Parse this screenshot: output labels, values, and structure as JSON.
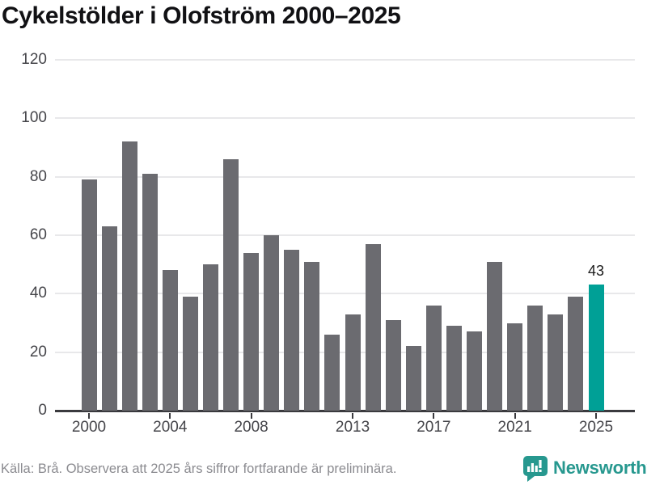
{
  "title": "Cykelstölder i Olofström 2000–2025",
  "footer": {
    "source_note": "Källa: Brå. Observera att 2025 års siffror fortfarande är preliminära."
  },
  "branding": {
    "logo_text": "Newsworthy",
    "logo_icon": "newsworthy-speech-bubble-bar-chart-icon"
  },
  "colors": {
    "bar": "#6b6b70",
    "highlight": "#00a096",
    "brand_teal": "#27988f",
    "grid": "#e8e8ea",
    "axis": "#3a3a3e",
    "tick_label": "#45454a",
    "title_text": "#111114",
    "footer_text": "#8b8b90",
    "value_label": "#1a1a1a"
  },
  "chart_data": {
    "type": "bar",
    "title": "Cykelstölder i Olofström 2000–2025",
    "xlabel": "",
    "ylabel": "",
    "categories": [
      2000,
      2001,
      2002,
      2003,
      2004,
      2005,
      2006,
      2007,
      2008,
      2009,
      2010,
      2011,
      2012,
      2013,
      2014,
      2015,
      2016,
      2017,
      2018,
      2019,
      2020,
      2021,
      2022,
      2023,
      2024,
      2025
    ],
    "values": [
      79,
      63,
      92,
      81,
      48,
      39,
      50,
      86,
      54,
      60,
      55,
      51,
      26,
      33,
      57,
      31,
      22,
      36,
      29,
      27,
      51,
      30,
      36,
      33,
      39,
      43
    ],
    "ylim": [
      0,
      120
    ],
    "yticks": [
      0,
      20,
      40,
      60,
      80,
      100,
      120
    ],
    "xticks": [
      2000,
      2004,
      2008,
      2013,
      2017,
      2021,
      2025
    ],
    "highlight_index": 25,
    "highlight_value_label": "43",
    "grid": true,
    "legend": false
  }
}
